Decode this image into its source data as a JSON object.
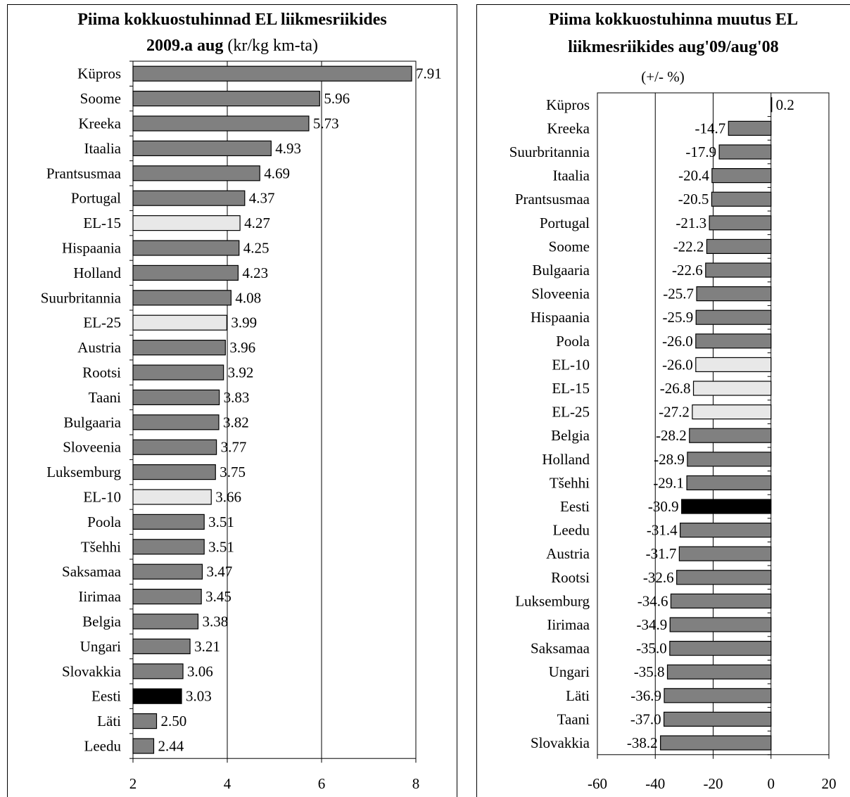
{
  "corner_label": "",
  "chart_data": [
    {
      "type": "bar",
      "orientation": "horizontal",
      "title_line1": "Piima kokkuostuhinnad EL liikmesriikides",
      "title_line2_bold": "2009.a aug",
      "title_line2_rest": " (kr/kg km-ta)",
      "categories": [
        "Küpros",
        "Soome",
        "Kreeka",
        "Itaalia",
        "Prantsusmaa",
        "Portugal",
        "EL-15",
        "Hispaania",
        "Holland",
        "Suurbritannia",
        "EL-25",
        "Austria",
        "Rootsi",
        "Taani",
        "Bulgaaria",
        "Sloveenia",
        "Luksemburg",
        "EL-10",
        "Poola",
        "Tšehhi",
        "Saksamaa",
        "Iirimaa",
        "Belgia",
        "Ungari",
        "Slovakkia",
        "Eesti",
        "Läti",
        "Leedu"
      ],
      "values": [
        7.91,
        5.96,
        5.73,
        4.93,
        4.69,
        4.37,
        4.27,
        4.25,
        4.23,
        4.08,
        3.99,
        3.96,
        3.92,
        3.83,
        3.82,
        3.77,
        3.75,
        3.66,
        3.51,
        3.51,
        3.47,
        3.45,
        3.38,
        3.21,
        3.06,
        3.03,
        2.5,
        2.44
      ],
      "labels": [
        "7.91",
        "5.96",
        "5.73",
        "4.93",
        "4.69",
        "4.37",
        "4.27",
        "4.25",
        "4.23",
        "4.08",
        "3.99",
        "3.96",
        "3.92",
        "3.83",
        "3.82",
        "3.77",
        "3.75",
        "3.66",
        "3.51",
        "3.51",
        "3.47",
        "3.45",
        "3.38",
        "3.21",
        "3.06",
        "3.03",
        "2.50",
        "2.44"
      ],
      "xlim": [
        2,
        8
      ],
      "ticks": [
        2,
        4,
        6,
        8
      ],
      "tick_labels": [
        "2",
        "4",
        "6",
        "8"
      ],
      "grid": true,
      "colors": {
        "default": "#808080",
        "aggregate": "#e8e8e8",
        "highlight": "#000000"
      },
      "aggregates": [
        "EL-15",
        "EL-25",
        "EL-10"
      ],
      "highlight": "Eesti"
    },
    {
      "type": "bar",
      "orientation": "horizontal",
      "title_line1": "Piima kokkuostuhinna muutus EL",
      "title_line2": "liikmesriikides aug'09/aug'08",
      "subtitle": "(+/- %)",
      "categories": [
        "Küpros",
        "Kreeka",
        "Suurbritannia",
        "Itaalia",
        "Prantsusmaa",
        "Portugal",
        "Soome",
        "Bulgaaria",
        "Sloveenia",
        "Hispaania",
        "Poola",
        "EL-10",
        "EL-15",
        "EL-25",
        "Belgia",
        "Holland",
        "Tšehhi",
        "Eesti",
        "Leedu",
        "Austria",
        "Rootsi",
        "Luksemburg",
        "Iirimaa",
        "Saksamaa",
        "Ungari",
        "Läti",
        "Taani",
        "Slovakkia"
      ],
      "values": [
        0.2,
        -14.7,
        -17.9,
        -20.4,
        -20.5,
        -21.3,
        -22.2,
        -22.6,
        -25.7,
        -25.9,
        -26.0,
        -26.0,
        -26.8,
        -27.2,
        -28.2,
        -28.9,
        -29.1,
        -30.9,
        -31.4,
        -31.7,
        -32.6,
        -34.6,
        -34.9,
        -35.0,
        -35.8,
        -36.9,
        -37.0,
        -38.2
      ],
      "labels": [
        "0.2",
        "-14.7",
        "-17.9",
        "-20.4",
        "-20.5",
        "-21.3",
        "-22.2",
        "-22.6",
        "-25.7",
        "-25.9",
        "-26.0",
        "-26.0",
        "-26.8",
        "-27.2",
        "-28.2",
        "-28.9",
        "-29.1",
        "-30.9",
        "-31.4",
        "-31.7",
        "-32.6",
        "-34.6",
        "-34.9",
        "-35.0",
        "-35.8",
        "-36.9",
        "-37.0",
        "-38.2"
      ],
      "xlim": [
        -60,
        20
      ],
      "ticks": [
        -60,
        -40,
        -20,
        0,
        20
      ],
      "tick_labels": [
        "-60",
        "-40",
        "-20",
        "0",
        "20"
      ],
      "grid": true,
      "colors": {
        "default": "#808080",
        "aggregate": "#e8e8e8",
        "highlight": "#000000"
      },
      "aggregates": [
        "EL-10",
        "EL-15",
        "EL-25"
      ],
      "highlight": "Eesti"
    }
  ]
}
